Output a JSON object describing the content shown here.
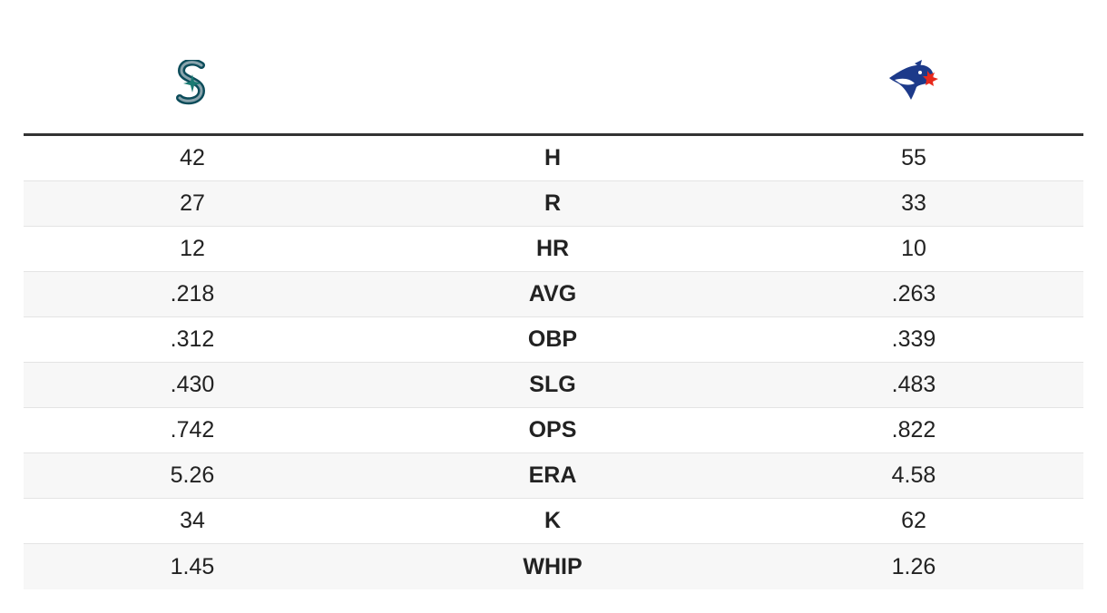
{
  "table": {
    "rows": [
      [
        "42",
        "H",
        "55"
      ],
      [
        "27",
        "R",
        "33"
      ],
      [
        "12",
        "HR",
        "10"
      ],
      [
        ".218",
        "AVG",
        ".263"
      ],
      [
        ".312",
        "OBP",
        ".339"
      ],
      [
        ".430",
        "SLG",
        ".483"
      ],
      [
        ".742",
        "OPS",
        ".822"
      ],
      [
        "5.26",
        "ERA",
        "4.58"
      ],
      [
        "34",
        "K",
        "62"
      ],
      [
        "1.45",
        "WHIP",
        "1.26"
      ]
    ]
  }
}
